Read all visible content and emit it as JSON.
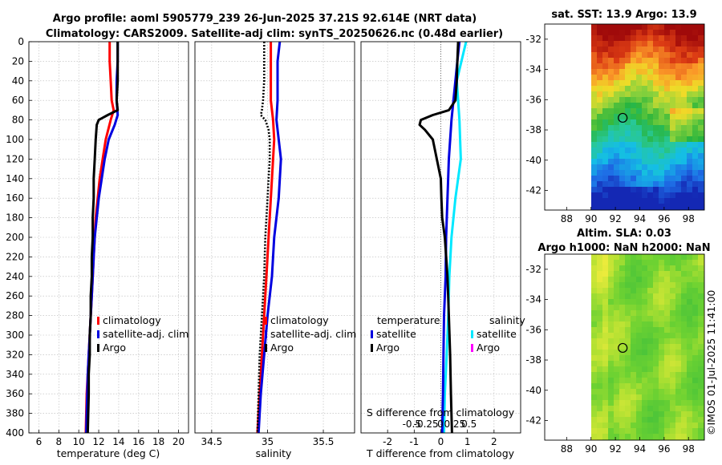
{
  "header": {
    "title_line1": "Argo profile: aoml 5905779_239 26-Jun-2025 37.21S 92.614E (NRT data)",
    "title_line2": "Climatology: CARS2009. Satellite-adj clim: synTS_20250626.nc (0.48d earlier)"
  },
  "colors": {
    "climatology": "#ff0000",
    "satellite": "#0000e0",
    "argo": "#000000",
    "satellite_salinity": "#00e8ff",
    "argo_salinity": "#ff00ff"
  },
  "chart_data": [
    {
      "id": "temperature",
      "type": "line",
      "xlabel": "temperature (deg C)",
      "xlim": [
        5,
        21
      ],
      "xticks": [
        "6",
        "8",
        "10",
        "12",
        "14",
        "16",
        "18",
        "20"
      ],
      "xtick_values": [
        6,
        8,
        10,
        12,
        14,
        16,
        18,
        20
      ],
      "ylim": [
        0,
        400
      ],
      "yticks": [
        "0",
        "20",
        "40",
        "60",
        "80",
        "100",
        "120",
        "140",
        "160",
        "180",
        "200",
        "220",
        "240",
        "260",
        "280",
        "300",
        "320",
        "340",
        "360",
        "380",
        "400"
      ],
      "ytick_values": [
        0,
        20,
        40,
        60,
        80,
        100,
        120,
        140,
        160,
        180,
        200,
        220,
        240,
        260,
        280,
        300,
        320,
        340,
        360,
        380,
        400
      ],
      "legend": [
        "climatology",
        "satellite-adj. clim",
        "Argo"
      ],
      "series": [
        {
          "name": "climatology",
          "depth": [
            0,
            20,
            40,
            60,
            70,
            80,
            100,
            120,
            140,
            160,
            180,
            200,
            220,
            240,
            260,
            280,
            300,
            320,
            340,
            360,
            380,
            400
          ],
          "values": [
            13.1,
            13.1,
            13.2,
            13.3,
            13.5,
            13.2,
            12.7,
            12.4,
            12.1,
            11.9,
            11.7,
            11.6,
            11.5,
            11.4,
            11.3,
            11.2,
            11.1,
            11.0,
            10.9,
            10.8,
            10.75,
            10.7
          ]
        },
        {
          "name": "satellite-adj. clim",
          "depth": [
            0,
            20,
            40,
            60,
            75,
            85,
            100,
            120,
            140,
            160,
            180,
            200,
            220,
            240,
            260,
            280,
            300,
            320,
            340,
            360,
            380,
            400
          ],
          "values": [
            13.9,
            13.9,
            13.8,
            13.8,
            13.9,
            13.6,
            13.0,
            12.6,
            12.3,
            12.0,
            11.8,
            11.6,
            11.5,
            11.4,
            11.3,
            11.2,
            11.1,
            11.0,
            10.9,
            10.85,
            10.8,
            10.75
          ]
        },
        {
          "name": "Argo",
          "depth": [
            0,
            20,
            40,
            60,
            70,
            75,
            80,
            85,
            100,
            120,
            140,
            160,
            180,
            200,
            220,
            240,
            260,
            280,
            300,
            320,
            340,
            360,
            380,
            400
          ],
          "values": [
            13.9,
            13.9,
            13.9,
            13.8,
            13.9,
            12.9,
            12.0,
            11.8,
            11.7,
            11.6,
            11.5,
            11.5,
            11.4,
            11.4,
            11.3,
            11.3,
            11.2,
            11.2,
            11.1,
            11.1,
            11.0,
            11.0,
            10.95,
            10.9
          ]
        }
      ]
    },
    {
      "id": "salinity",
      "type": "line",
      "xlabel": "salinity",
      "xlim": [
        34.35,
        35.78
      ],
      "xticks": [
        "34.5",
        "35",
        "35.5"
      ],
      "xtick_values": [
        34.5,
        35.0,
        35.5
      ],
      "ylim": [
        0,
        400
      ],
      "legend": [
        "climatology",
        "satellite-adj. clim",
        "Argo"
      ],
      "series": [
        {
          "name": "climatology",
          "depth": [
            0,
            20,
            40,
            60,
            80,
            100,
            120,
            140,
            160,
            180,
            200,
            240,
            280,
            320,
            360,
            400
          ],
          "values": [
            35.03,
            35.03,
            35.03,
            35.03,
            35.05,
            35.06,
            35.05,
            35.04,
            35.03,
            35.02,
            35.01,
            34.99,
            34.97,
            34.95,
            34.93,
            34.91
          ]
        },
        {
          "name": "satellite-adj. clim",
          "depth": [
            0,
            20,
            40,
            60,
            80,
            100,
            120,
            140,
            160,
            180,
            200,
            240,
            280,
            320,
            360,
            400
          ],
          "values": [
            35.11,
            35.09,
            35.09,
            35.09,
            35.08,
            35.1,
            35.12,
            35.11,
            35.1,
            35.08,
            35.06,
            35.04,
            35.0,
            34.97,
            34.94,
            34.92
          ]
        },
        {
          "name": "Argo",
          "depth": [
            0,
            20,
            40,
            60,
            70,
            75,
            80,
            90,
            100,
            120,
            140,
            160,
            180,
            200,
            240,
            280,
            320,
            360,
            400
          ],
          "values": [
            34.97,
            34.97,
            34.97,
            34.96,
            34.95,
            34.94,
            34.98,
            35.01,
            35.02,
            35.02,
            35.01,
            35.0,
            34.99,
            34.98,
            34.97,
            34.95,
            34.93,
            34.92,
            34.91
          ]
        }
      ]
    },
    {
      "id": "difference",
      "type": "line",
      "xlabel": "T difference from climatology",
      "xlabel_top": "S difference from climatology",
      "xlim": [
        -3,
        3
      ],
      "xticks": [
        "-2",
        "-1",
        "0",
        "1",
        "2"
      ],
      "xtick_values": [
        -2,
        -1,
        0,
        1,
        2
      ],
      "xticks_top": [
        "-0.5",
        "-0.25",
        "0",
        "0.25",
        "0.5"
      ],
      "xtick_top_values": [
        -0.5,
        -0.25,
        0,
        0.25,
        0.5
      ],
      "ylim": [
        0,
        400
      ],
      "legend_left_title": "temperature",
      "legend_left": [
        "satellite",
        "Argo"
      ],
      "legend_right_title": "salinity",
      "legend_right": [
        "satellite",
        "Argo"
      ],
      "series": [
        {
          "name": "temperature satellite",
          "depth": [
            0,
            20,
            40,
            80,
            120,
            160,
            200,
            240,
            280,
            320,
            360,
            400
          ],
          "values": [
            0.7,
            0.62,
            0.55,
            0.4,
            0.3,
            0.25,
            0.2,
            0.18,
            0.12,
            0.1,
            0.08,
            0.05
          ]
        },
        {
          "name": "temperature Argo",
          "depth": [
            0,
            20,
            40,
            60,
            70,
            75,
            80,
            85,
            90,
            100,
            120,
            140,
            160,
            180,
            200,
            240,
            280,
            320,
            360,
            400
          ],
          "values": [
            0.65,
            0.62,
            0.6,
            0.55,
            0.3,
            -0.3,
            -0.75,
            -0.8,
            -0.6,
            -0.3,
            -0.15,
            0.0,
            0.02,
            0.05,
            0.15,
            0.25,
            0.3,
            0.35,
            0.38,
            0.42
          ]
        },
        {
          "name": "salinity satellite",
          "depth": [
            0,
            40,
            80,
            120,
            160,
            200,
            240,
            280,
            320,
            360,
            400
          ],
          "values": [
            0.95,
            0.6,
            0.7,
            0.75,
            0.55,
            0.4,
            0.32,
            0.28,
            0.22,
            0.15,
            0.12
          ]
        }
      ]
    },
    {
      "id": "sst_map",
      "type": "heatmap",
      "title": "sat. SST: 13.9 Argo: 13.9",
      "xticks": [
        "88",
        "90",
        "92",
        "94",
        "96",
        "98"
      ],
      "xtick_values": [
        88,
        90,
        92,
        94,
        96,
        98
      ],
      "yticks": [
        "-32",
        "-34",
        "-36",
        "-38",
        "-40",
        "-42"
      ],
      "ytick_values": [
        -32,
        -34,
        -36,
        -38,
        -40,
        -42
      ],
      "xlim": [
        86.2,
        99.3
      ],
      "ylim": [
        -43.3,
        -31.0
      ],
      "data_lon_min": 90,
      "marker": [
        92.6,
        -37.2
      ]
    },
    {
      "id": "sla_map",
      "type": "heatmap",
      "title_line1": "Altim. SLA: 0.03",
      "title_line2": "Argo h1000: NaN h2000: NaN",
      "xticks": [
        "88",
        "90",
        "92",
        "94",
        "96",
        "98"
      ],
      "xtick_values": [
        88,
        90,
        92,
        94,
        96,
        98
      ],
      "yticks": [
        "-32",
        "-34",
        "-36",
        "-38",
        "-40",
        "-42"
      ],
      "ytick_values": [
        -32,
        -34,
        -36,
        -38,
        -40,
        -42
      ],
      "xlim": [
        86.2,
        99.3
      ],
      "ylim": [
        -43.3,
        -31.0
      ],
      "data_lon_min": 90,
      "marker": [
        92.6,
        -37.2
      ]
    }
  ],
  "footer": {
    "watermark": "©IMOS 01-Jul-2025 11:41:00"
  }
}
